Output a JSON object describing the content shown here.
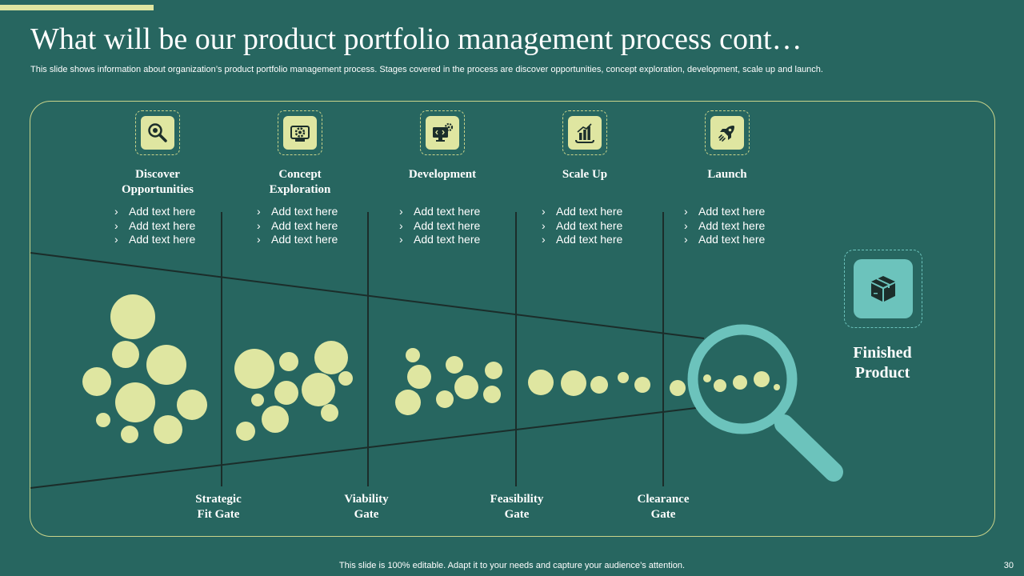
{
  "slide": {
    "title": "What will be our product portfolio management process cont…",
    "subtitle": "This slide shows information about organization’s product portfolio management process. Stages covered in the process are discover opportunities, concept exploration, development, scale up and launch.",
    "footer": "This slide is 100% editable. Adapt it to your needs and capture your audience’s attention.",
    "page_number": "30"
  },
  "colors": {
    "background": "#276660",
    "accent": "#dfe6a1",
    "bubble": "#dfe6a1",
    "teal": "#6cc3bc",
    "line": "#1b2d2a"
  },
  "stages": [
    {
      "title_line1": "Discover",
      "title_line2": "Opportunities",
      "icon": "search-icon",
      "items": [
        "Add text here",
        "Add text here",
        "Add text here"
      ]
    },
    {
      "title_line1": "Concept",
      "title_line2": "Exploration",
      "icon": "idea-gear-icon",
      "items": [
        "Add text here",
        "Add text here",
        "Add text here"
      ]
    },
    {
      "title_line1": "Development",
      "title_line2": "",
      "icon": "code-monitor-icon",
      "items": [
        "Add text here",
        "Add text here",
        "Add text here"
      ]
    },
    {
      "title_line1": "Scale Up",
      "title_line2": "",
      "icon": "growth-chart-icon",
      "items": [
        "Add text here",
        "Add text here",
        "Add text here"
      ]
    },
    {
      "title_line1": "Launch",
      "title_line2": "",
      "icon": "rocket-icon",
      "items": [
        "Add text here",
        "Add text here",
        "Add text here"
      ]
    }
  ],
  "gates": [
    {
      "line1": "Strategic",
      "line2": "Fit Gate"
    },
    {
      "line1": "Viability",
      "line2": "Gate"
    },
    {
      "line1": "Feasibility",
      "line2": "Gate"
    },
    {
      "line1": "Clearance",
      "line2": "Gate"
    }
  ],
  "finished_product": {
    "line1": "Finished",
    "line2": "Product",
    "icon": "box-icon"
  },
  "bullet_glyph": "›"
}
